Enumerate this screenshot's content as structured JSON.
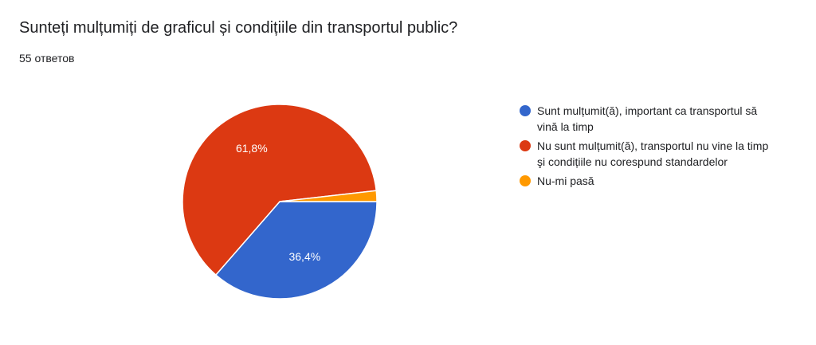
{
  "question": {
    "title": "Sunteți mulțumiți de graficul și condițiile din transportul public?",
    "response_count": "55 ответов"
  },
  "chart_data": {
    "type": "pie",
    "total_responses": 55,
    "slices": [
      {
        "name": "Sunt mulțumit(ă), important ca transportul să vină la timp",
        "value": 36.4,
        "label": "36,4%",
        "color": "#3366cc"
      },
      {
        "name": "Nu sunt mulțumit(ă), transportul nu vine la timp şi condițiile nu corespund standardelor",
        "value": 61.8,
        "label": "61,8%",
        "color": "#dc3912"
      },
      {
        "name": "Nu-mi pasă",
        "value": 1.8,
        "label": "",
        "color": "#ff9900"
      }
    ],
    "legend_position": "right"
  }
}
